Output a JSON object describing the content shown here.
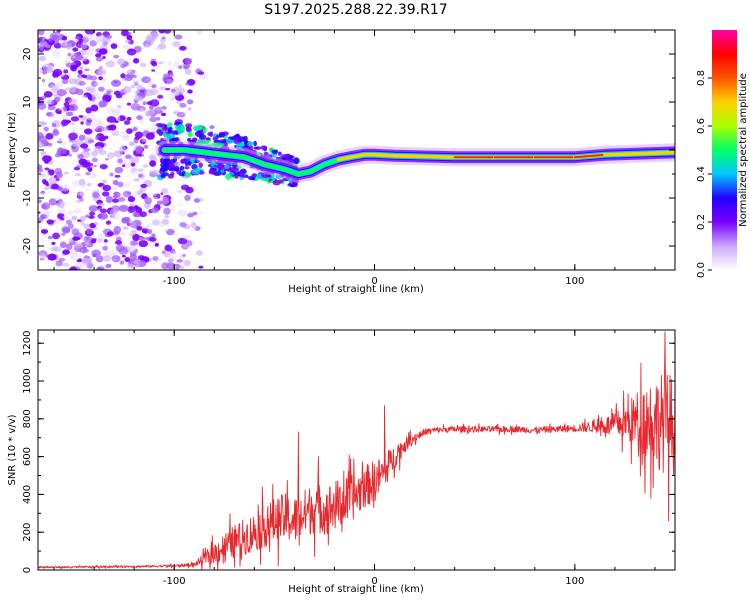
{
  "figure_title": "S197.2025.288.22.39.R17",
  "chart_data": [
    {
      "type": "heatmap",
      "name": "spectrogram",
      "title": "S197.2025.288.22.39.R17",
      "xlabel": "Height of straight line (km)",
      "ylabel": "Frequency (Hz)",
      "xlim": [
        -168,
        150
      ],
      "ylim": [
        -25,
        25
      ],
      "x_ticks": [
        -100,
        0,
        100
      ],
      "y_ticks": [
        -20,
        -10,
        0,
        10,
        20
      ],
      "colorbar": {
        "label": "Normalized spectral amplitude",
        "range": [
          0,
          1
        ],
        "ticks": [
          0.0,
          0.2,
          0.4,
          0.6,
          0.8
        ],
        "tick_labels": [
          "0.0",
          "0.2",
          "0.4",
          "0.6",
          "0.8"
        ],
        "colormap": [
          "#ffffff",
          "#c9a8ff",
          "#7a00ff",
          "#2200ff",
          "#00c8ff",
          "#00ff66",
          "#aaff00",
          "#ffd000",
          "#ff5500",
          "#ff0000",
          "#ff00aa"
        ]
      },
      "ridge_points": {
        "x": [
          -105,
          -95,
          -85,
          -75,
          -65,
          -55,
          -45,
          -38,
          -32,
          -25,
          -18,
          -12,
          -5,
          0,
          10,
          20,
          40,
          60,
          80,
          100,
          115,
          130,
          150
        ],
        "freq": [
          0.0,
          0.0,
          -0.5,
          -1.0,
          -1.5,
          -3.0,
          -4.0,
          -5.0,
          -4.5,
          -3.0,
          -2.0,
          -1.5,
          -1.0,
          -1.0,
          -1.2,
          -1.3,
          -1.5,
          -1.5,
          -1.5,
          -1.5,
          -1.0,
          -0.8,
          -0.5
        ]
      },
      "noise_region": "x < -90 km: scattered low-amplitude (violet) noise across all frequencies"
    },
    {
      "type": "line",
      "name": "snr",
      "title": "",
      "xlabel": "Height of straight line (km)",
      "ylabel": "SNR (10 * v/v)",
      "xlim": [
        -168,
        150
      ],
      "ylim": [
        0,
        1270
      ],
      "x_ticks": [
        -100,
        0,
        100
      ],
      "y_ticks": [
        0,
        200,
        400,
        600,
        800,
        1000,
        1200
      ],
      "color": "#e8282d",
      "series": [
        {
          "name": "SNR",
          "x": [
            -168,
            -150,
            -130,
            -110,
            -100,
            -90,
            -85,
            -80,
            -75,
            -70,
            -65,
            -60,
            -55,
            -50,
            -45,
            -40,
            -35,
            -30,
            -25,
            -20,
            -15,
            -10,
            -5,
            0,
            5,
            10,
            15,
            20,
            25,
            30,
            40,
            50,
            60,
            70,
            80,
            90,
            100,
            110,
            120,
            125,
            130,
            135,
            140,
            145,
            150
          ],
          "mean": [
            15,
            15,
            18,
            20,
            22,
            28,
            60,
            90,
            120,
            150,
            175,
            200,
            230,
            260,
            280,
            260,
            300,
            330,
            320,
            340,
            360,
            390,
            440,
            470,
            520,
            600,
            660,
            700,
            730,
            740,
            745,
            745,
            745,
            745,
            740,
            745,
            750,
            760,
            770,
            780,
            790,
            800,
            790,
            780,
            770
          ],
          "spread": [
            6,
            6,
            6,
            7,
            8,
            12,
            40,
            70,
            100,
            110,
            120,
            130,
            140,
            150,
            160,
            160,
            160,
            170,
            160,
            170,
            160,
            150,
            140,
            140,
            110,
            80,
            50,
            30,
            22,
            20,
            20,
            20,
            20,
            20,
            22,
            22,
            25,
            40,
            80,
            120,
            180,
            260,
            300,
            340,
            340
          ]
        }
      ],
      "peaks": [
        {
          "x": -38,
          "y": 730
        },
        {
          "x": -28,
          "y": 600
        },
        {
          "x": 5,
          "y": 870
        },
        {
          "x": 145,
          "y": 1260
        }
      ]
    }
  ]
}
